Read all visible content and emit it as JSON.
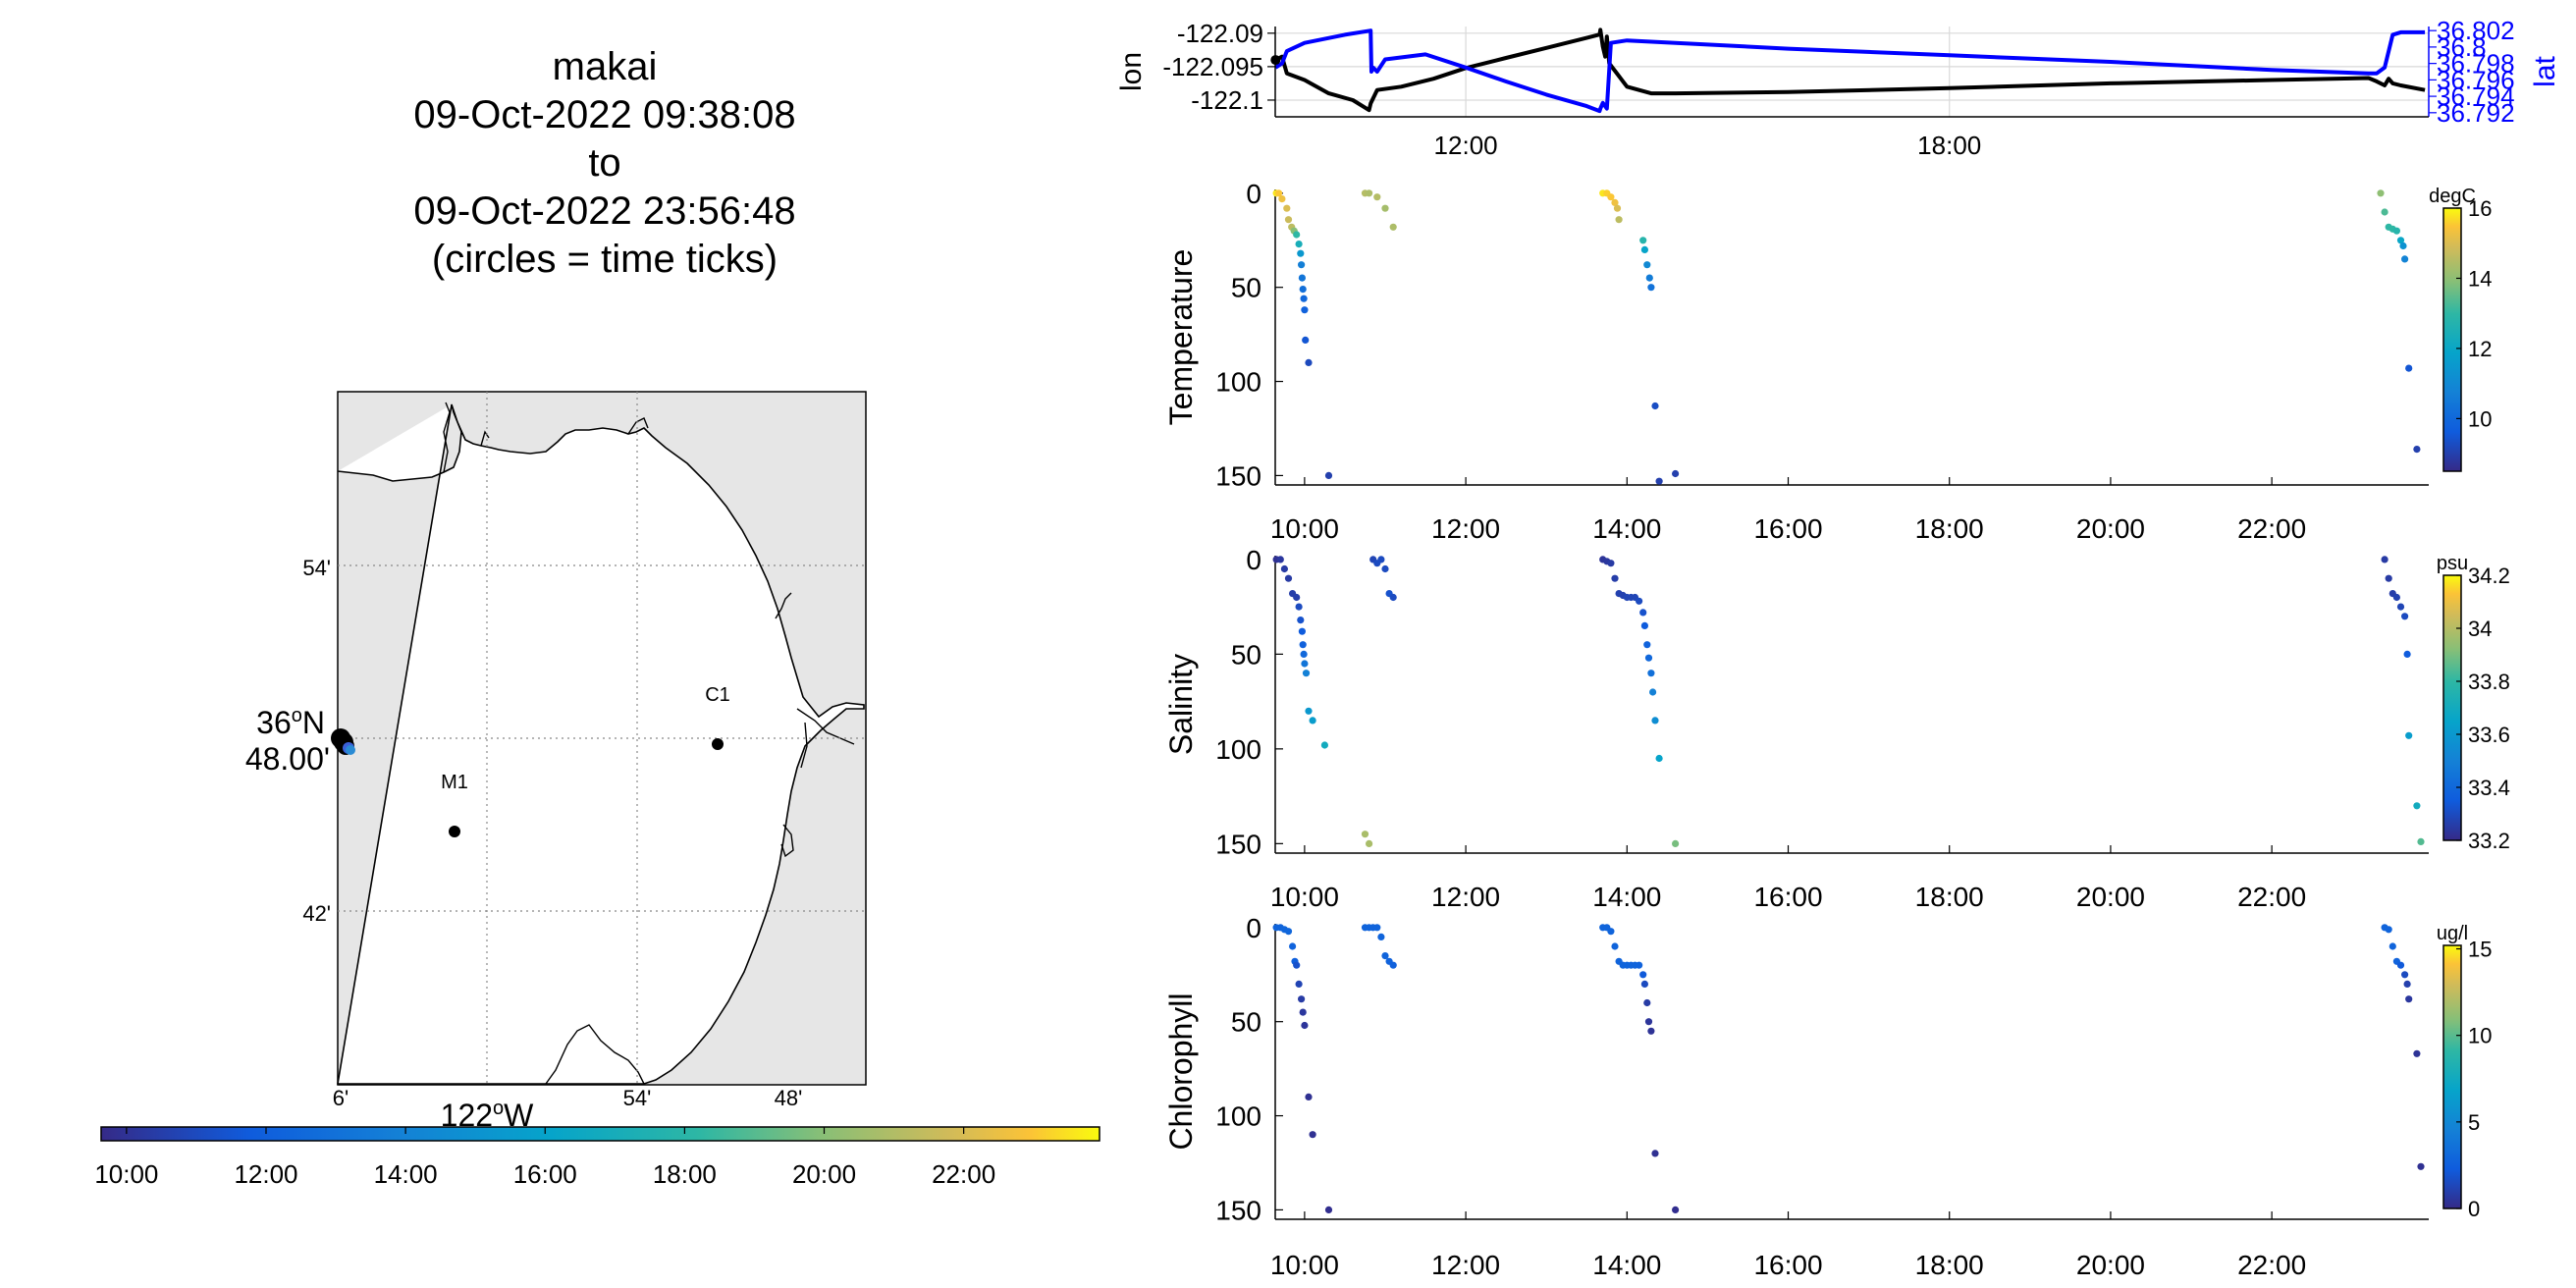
{
  "header": {
    "vehicle": "makai",
    "start": "09-Oct-2022 09:38:08",
    "to_word": "to",
    "end": "09-Oct-2022 23:56:48",
    "note": "(circles = time ticks)"
  },
  "map": {
    "lat_ticks": [
      "54'",
      "42'"
    ],
    "lat_main_deg": "36",
    "lat_main_sup": "o",
    "lat_main_hemi": "N",
    "lat_main_min": "48.00'",
    "lon_ticks": [
      "6'",
      "54'",
      "48'"
    ],
    "lon_main_deg": "122",
    "lon_main_sup": "o",
    "lon_main_hemi": "W",
    "stations": [
      {
        "name": "C1"
      },
      {
        "name": "M1"
      }
    ],
    "colorbar_ticks": [
      "10:00",
      "12:00",
      "14:00",
      "16:00",
      "18:00",
      "20:00",
      "22:00"
    ],
    "colors": {
      "land": "#e6e6e6",
      "water": "#ffffff",
      "coast": "#000000"
    }
  },
  "chart_data": [
    {
      "type": "line",
      "title": "",
      "xlabel": "",
      "ylabel": "lon",
      "ylabel_right": "lat",
      "x_ticks": [
        "12:00",
        "18:00"
      ],
      "y_ticks": [
        "-122.09",
        "-122.095",
        "-122.1"
      ],
      "y_ticks_right": [
        "36.802",
        "36.8",
        "36.798",
        "36.796",
        "36.794",
        "36.792"
      ],
      "ylim": [
        -122.1025,
        -122.089
      ],
      "ylim_right": [
        36.7915,
        36.8025
      ],
      "xlim_hours": [
        9.636,
        23.947
      ],
      "grid": true,
      "series": [
        {
          "name": "lon",
          "color": "#000000",
          "t": [
            9.64,
            9.72,
            9.78,
            10.0,
            10.3,
            10.6,
            10.8,
            10.82,
            10.9,
            11.2,
            11.6,
            12.0,
            12.5,
            13.0,
            13.5,
            13.66,
            13.67,
            13.7,
            13.73,
            13.75,
            13.78,
            14.0,
            14.3,
            14.6,
            16.0,
            18.0,
            20.0,
            22.0,
            23.2,
            23.3,
            23.4,
            23.45,
            23.5,
            23.6,
            23.9
          ],
          "values": [
            -122.094,
            -122.0935,
            -122.096,
            -122.097,
            -122.099,
            -122.1,
            -122.1015,
            -122.1005,
            -122.0985,
            -122.098,
            -122.0968,
            -122.0952,
            -122.0937,
            -122.0922,
            -122.0907,
            -122.0902,
            -122.0895,
            -122.092,
            -122.0935,
            -122.0905,
            -122.0945,
            -122.098,
            -122.099,
            -122.099,
            -122.0988,
            -122.0982,
            -122.0975,
            -122.097,
            -122.0967,
            -122.0972,
            -122.0978,
            -122.0968,
            -122.0975,
            -122.0978,
            -122.0985
          ]
        },
        {
          "name": "lat",
          "color": "#0000ff",
          "t": [
            9.64,
            9.72,
            9.78,
            10.0,
            10.5,
            10.82,
            10.83,
            10.85,
            10.9,
            11.0,
            11.5,
            12.0,
            12.5,
            13.0,
            13.5,
            13.66,
            13.67,
            13.7,
            13.75,
            13.8,
            14.0,
            16.0,
            18.0,
            20.0,
            22.0,
            23.2,
            23.3,
            23.4,
            23.5,
            23.6,
            23.9
          ],
          "values": [
            36.7975,
            36.798,
            36.7995,
            36.8005,
            36.8015,
            36.802,
            36.797,
            36.7975,
            36.797,
            36.7985,
            36.7991,
            36.7975,
            36.7958,
            36.7942,
            36.7928,
            36.7922,
            36.7925,
            36.7932,
            36.7925,
            36.8005,
            36.8008,
            36.7998,
            36.799,
            36.7982,
            36.7972,
            36.7968,
            36.7968,
            36.7975,
            36.8015,
            36.8018,
            36.8018
          ]
        }
      ]
    },
    {
      "type": "scatter",
      "title": "",
      "ylabel": "Temperature",
      "units": "degC",
      "x_ticks": [
        "10:00",
        "12:00",
        "14:00",
        "16:00",
        "18:00",
        "20:00",
        "22:00"
      ],
      "y_ticks": [
        "0",
        "50",
        "100",
        "150"
      ],
      "ylim": [
        155,
        -2
      ],
      "xlim_hours": [
        9.636,
        23.947
      ],
      "clim": [
        8.5,
        16
      ],
      "colorbar_ticks": [
        "16",
        "14",
        "12",
        "10"
      ],
      "colorbar_values": [
        16,
        14,
        12,
        10
      ],
      "t": [
        9.65,
        9.68,
        9.72,
        9.78,
        9.8,
        9.84,
        9.87,
        9.9,
        9.93,
        9.95,
        9.96,
        9.97,
        9.98,
        9.99,
        10.0,
        10.01,
        10.05,
        10.3,
        10.75,
        10.8,
        10.9,
        11.0,
        11.1,
        13.7,
        13.75,
        13.8,
        13.85,
        13.88,
        13.9,
        14.2,
        14.22,
        14.25,
        14.28,
        14.3,
        14.35,
        14.4,
        14.6,
        23.35,
        23.4,
        23.45,
        23.5,
        23.55,
        23.6,
        23.63,
        23.65,
        23.7,
        23.8
      ],
      "depth": [
        0,
        0,
        3,
        8,
        14,
        18,
        20,
        22,
        27,
        32,
        38,
        45,
        51,
        56,
        62,
        78,
        90,
        150,
        0,
        0,
        2,
        8,
        18,
        0,
        0,
        2,
        5,
        8,
        14,
        25,
        30,
        38,
        45,
        50,
        113,
        153,
        149,
        0,
        10,
        18,
        19,
        20,
        25,
        28,
        35,
        93,
        136
      ],
      "values": [
        15.8,
        15.5,
        15.3,
        15.0,
        14.8,
        14.6,
        13.9,
        13.0,
        12.4,
        11.5,
        10.7,
        10.4,
        10.2,
        10.0,
        9.8,
        9.5,
        9.2,
        9.0,
        14.5,
        14.4,
        14.5,
        14.3,
        14.4,
        15.8,
        15.6,
        15.5,
        15.3,
        15.0,
        14.6,
        12.8,
        11.9,
        11.0,
        10.6,
        10.3,
        9.3,
        9.0,
        9.0,
        14.0,
        13.3,
        13.0,
        13.0,
        12.8,
        12.0,
        11.3,
        10.8,
        9.5,
        9.0
      ]
    },
    {
      "type": "scatter",
      "title": "",
      "ylabel": "Salinity",
      "units": "psu",
      "x_ticks": [
        "10:00",
        "12:00",
        "14:00",
        "16:00",
        "18:00",
        "20:00",
        "22:00"
      ],
      "y_ticks": [
        "0",
        "50",
        "100",
        "150"
      ],
      "ylim": [
        155,
        -2
      ],
      "xlim_hours": [
        9.636,
        23.947
      ],
      "clim": [
        33.2,
        34.2
      ],
      "colorbar_ticks": [
        "34.2",
        "34",
        "33.8",
        "33.6",
        "33.4",
        "33.2"
      ],
      "colorbar_values": [
        34.2,
        34.0,
        33.8,
        33.6,
        33.4,
        33.2
      ],
      "t": [
        9.65,
        9.7,
        9.75,
        9.8,
        9.85,
        9.9,
        9.93,
        9.95,
        9.97,
        9.98,
        9.99,
        10.0,
        10.02,
        10.05,
        10.1,
        10.25,
        10.75,
        10.8,
        10.85,
        10.9,
        10.95,
        11.0,
        11.05,
        11.1,
        13.7,
        13.75,
        13.8,
        13.85,
        13.9,
        13.95,
        14.0,
        14.05,
        14.1,
        14.15,
        14.2,
        14.22,
        14.25,
        14.27,
        14.3,
        14.32,
        14.35,
        14.4,
        14.6,
        23.4,
        23.45,
        23.5,
        23.55,
        23.6,
        23.65,
        23.68,
        23.7,
        23.8,
        23.85
      ],
      "depth": [
        0,
        0,
        5,
        10,
        18,
        20,
        25,
        32,
        38,
        45,
        50,
        55,
        60,
        80,
        85,
        98,
        145,
        150,
        0,
        2,
        0,
        5,
        18,
        20,
        0,
        1,
        2,
        10,
        18,
        19,
        20,
        20,
        20,
        22,
        28,
        35,
        45,
        52,
        60,
        70,
        85,
        105,
        150,
        0,
        10,
        18,
        20,
        25,
        30,
        50,
        93,
        130,
        149
      ],
      "values": [
        33.22,
        33.24,
        33.25,
        33.25,
        33.26,
        33.26,
        33.3,
        33.32,
        33.35,
        33.37,
        33.4,
        33.45,
        33.5,
        33.6,
        33.62,
        33.7,
        33.98,
        33.98,
        33.28,
        33.3,
        33.3,
        33.3,
        33.32,
        33.3,
        33.23,
        33.24,
        33.25,
        33.26,
        33.27,
        33.27,
        33.28,
        33.28,
        33.28,
        33.3,
        33.32,
        33.35,
        33.38,
        33.4,
        33.43,
        33.5,
        33.55,
        33.65,
        33.9,
        33.25,
        33.25,
        33.26,
        33.27,
        33.28,
        33.3,
        33.35,
        33.62,
        33.7,
        33.85
      ]
    },
    {
      "type": "scatter",
      "title": "",
      "ylabel": "Chlorophyll",
      "units": "ug/l",
      "x_ticks": [
        "10:00",
        "12:00",
        "14:00",
        "16:00",
        "18:00",
        "20:00",
        "22:00"
      ],
      "y_ticks": [
        "0",
        "50",
        "100",
        "150"
      ],
      "ylim": [
        155,
        -2
      ],
      "xlim_hours": [
        9.636,
        23.947
      ],
      "clim": [
        0,
        15.2
      ],
      "colorbar_ticks": [
        "15",
        "10",
        "5",
        "0"
      ],
      "colorbar_values": [
        15,
        10,
        5,
        0
      ],
      "t": [
        9.65,
        9.7,
        9.75,
        9.8,
        9.85,
        9.88,
        9.9,
        9.93,
        9.96,
        9.98,
        10.0,
        10.05,
        10.1,
        10.3,
        10.75,
        10.8,
        10.85,
        10.9,
        10.95,
        11.0,
        11.05,
        11.1,
        13.7,
        13.75,
        13.8,
        13.85,
        13.9,
        13.95,
        14.0,
        14.05,
        14.1,
        14.15,
        14.2,
        14.22,
        14.25,
        14.27,
        14.3,
        14.35,
        14.6,
        23.4,
        23.45,
        23.5,
        23.55,
        23.6,
        23.65,
        23.68,
        23.7,
        23.8,
        23.85
      ],
      "depth": [
        0,
        0,
        1,
        2,
        10,
        18,
        20,
        30,
        38,
        45,
        52,
        90,
        110,
        150,
        0,
        0,
        0,
        0,
        5,
        15,
        18,
        20,
        0,
        0,
        2,
        10,
        18,
        20,
        20,
        20,
        20,
        20,
        25,
        30,
        40,
        50,
        55,
        120,
        150,
        0,
        1,
        10,
        18,
        20,
        25,
        30,
        38,
        67,
        127
      ],
      "values": [
        2.8,
        2.8,
        2.9,
        2.9,
        2.7,
        2.5,
        1.8,
        1.2,
        0.8,
        0.6,
        0.5,
        0.3,
        0.3,
        0.2,
        2.8,
        2.8,
        2.8,
        2.8,
        2.8,
        2.8,
        2.7,
        2.6,
        2.8,
        2.8,
        2.8,
        2.8,
        2.8,
        2.8,
        2.8,
        2.8,
        2.8,
        2.7,
        2.2,
        1.5,
        0.8,
        0.5,
        0.4,
        0.3,
        0.2,
        2.8,
        2.8,
        2.8,
        2.7,
        2.2,
        1.5,
        1.0,
        0.6,
        0.4,
        0.3
      ]
    }
  ]
}
